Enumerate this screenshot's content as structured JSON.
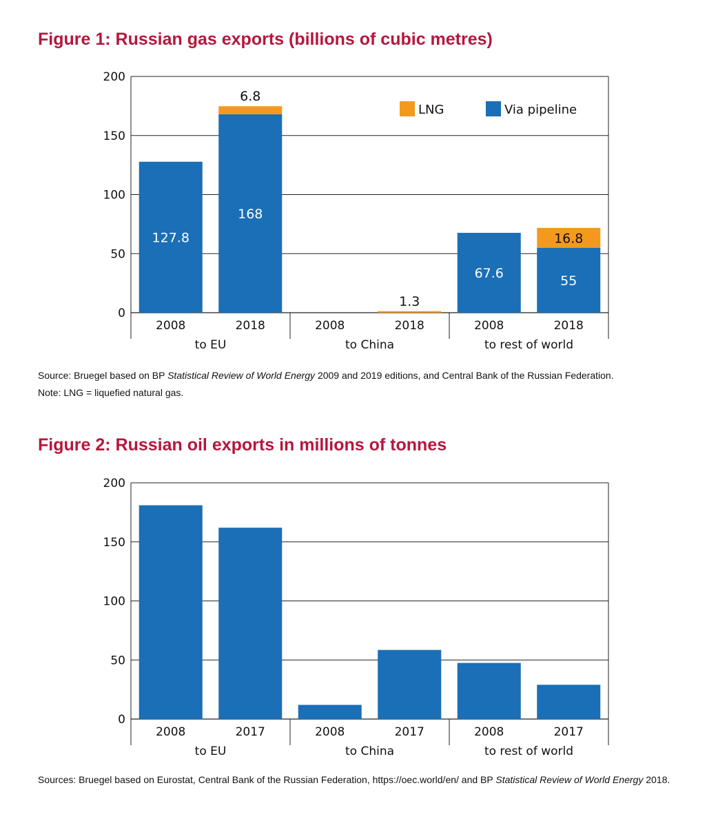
{
  "figure1": {
    "title": "Figure 1: Russian gas exports (billions of cubic metres)",
    "source_prefix": "Source: Bruegel based on BP ",
    "source_italic": "Statistical Review of World Energy",
    "source_suffix": " 2009 and 2019 editions, and Central Bank of the Russian Federation.",
    "note": "Note: LNG = liquefied natural gas."
  },
  "figure2": {
    "title": "Figure 2: Russian oil exports in millions of tonnes",
    "source_prefix": "Sources: Bruegel based on Eurostat, Central Bank of the Russian Federation, https://oec.world/en/ and BP ",
    "source_italic": "Statistical Review of World Energy",
    "source_suffix": " 2018."
  },
  "colors": {
    "pipeline": "#1a6fb6",
    "lng": "#f39a1e",
    "title": "#b5173d"
  },
  "chart_data": [
    {
      "type": "bar",
      "stacked": true,
      "title": "Figure 1: Russian gas exports (billions of cubic metres)",
      "groups": [
        "to EU",
        "to China",
        "to rest of world"
      ],
      "categories": [
        "2008",
        "2018",
        "2008",
        "2018",
        "2008",
        "2018"
      ],
      "series": [
        {
          "name": "Via pipeline",
          "color": "#1a6fb6",
          "values": [
            127.8,
            168,
            0,
            0,
            67.6,
            55
          ]
        },
        {
          "name": "LNG",
          "color": "#f39a1e",
          "values": [
            0,
            6.8,
            0,
            1.3,
            0,
            16.8
          ]
        }
      ],
      "data_labels": [
        {
          "bar": 0,
          "series": 0,
          "text": "127.8",
          "inside": true
        },
        {
          "bar": 1,
          "series": 0,
          "text": "168",
          "inside": true
        },
        {
          "bar": 1,
          "series": 1,
          "text": "6.8",
          "inside": false
        },
        {
          "bar": 3,
          "series": 1,
          "text": "1.3",
          "inside": false
        },
        {
          "bar": 4,
          "series": 0,
          "text": "67.6",
          "inside": true
        },
        {
          "bar": 5,
          "series": 0,
          "text": "55",
          "inside": true
        },
        {
          "bar": 5,
          "series": 1,
          "text": "16.8",
          "inside": true
        }
      ],
      "yticks": [
        0,
        50,
        100,
        150,
        200
      ],
      "ylim": [
        0,
        200
      ],
      "legend_order": [
        "LNG",
        "Via pipeline"
      ],
      "legend_position": "top-right",
      "grid": true
    },
    {
      "type": "bar",
      "stacked": false,
      "title": "Figure 2: Russian oil exports in millions of tonnes",
      "groups": [
        "to EU",
        "to China",
        "to rest of world"
      ],
      "categories": [
        "2008",
        "2017",
        "2008",
        "2017",
        "2008",
        "2017"
      ],
      "series": [
        {
          "color": "#1a6fb6",
          "values": [
            181,
            162,
            12,
            58.5,
            47.5,
            29
          ]
        }
      ],
      "yticks": [
        0,
        50,
        100,
        150,
        200
      ],
      "ylim": [
        0,
        200
      ],
      "grid": true
    }
  ]
}
